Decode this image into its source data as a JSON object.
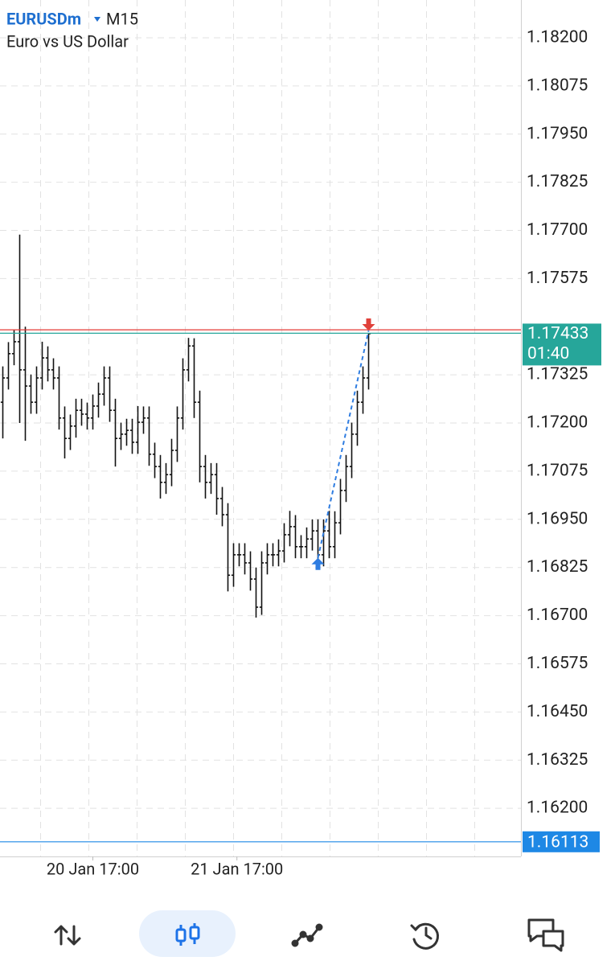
{
  "chart_data": {
    "type": "ohlc",
    "symbol": "EURUSDm",
    "timeframe": "M15",
    "title": "Euro vs US Dollar",
    "open": [
      1.17254,
      1.17317,
      1.1738,
      1.17411,
      1.17338,
      1.17296,
      1.17254,
      1.17317,
      1.17369,
      1.17338,
      1.17317,
      1.17213,
      1.1716,
      1.17192,
      1.17233,
      1.17223,
      1.17213,
      1.17244,
      1.17275,
      1.17317,
      1.17233,
      1.1716,
      1.17171,
      1.17181,
      1.1715,
      1.17202,
      1.17213,
      1.17119,
      1.17087,
      1.17046,
      1.17066,
      1.17129,
      1.17213,
      1.17338,
      1.174,
      1.17254,
      1.17087,
      1.17046,
      1.17066,
      1.17004,
      1.16962,
      1.16805,
      1.16858,
      1.16858,
      1.16837,
      1.16795,
      1.16722,
      1.16837,
      1.16858,
      1.16858,
      1.16868,
      1.1691,
      1.16931,
      1.16879,
      1.16879,
      1.16899,
      1.1692,
      1.16858,
      1.1692,
      1.16879,
      1.16941,
      1.17025,
      1.17087,
      1.17171,
      1.17254,
      1.17317
    ],
    "high": [
      1.17347,
      1.1741,
      1.17441,
      1.17689,
      1.1745,
      1.17326,
      1.17347,
      1.17411,
      1.17399,
      1.17368,
      1.17347,
      1.17243,
      1.17222,
      1.17263,
      1.17263,
      1.17253,
      1.17274,
      1.17305,
      1.17347,
      1.17347,
      1.17263,
      1.17201,
      1.17211,
      1.17211,
      1.17244,
      1.17243,
      1.17243,
      1.17149,
      1.17117,
      1.17096,
      1.17159,
      1.17243,
      1.17368,
      1.17421,
      1.1742,
      1.17284,
      1.17117,
      1.17096,
      1.17096,
      1.17034,
      1.16992,
      1.16888,
      1.16888,
      1.16888,
      1.16867,
      1.16825,
      1.16867,
      1.16888,
      1.16888,
      1.16898,
      1.1694,
      1.16972,
      1.16961,
      1.16909,
      1.16929,
      1.1695,
      1.1695,
      1.1695,
      1.16972,
      1.16971,
      1.17055,
      1.17117,
      1.17201,
      1.17284,
      1.17347,
      1.17433
    ],
    "low": [
      1.1716,
      1.17287,
      1.1735,
      1.172,
      1.17154,
      1.17224,
      1.17224,
      1.17287,
      1.17308,
      1.17287,
      1.17183,
      1.17108,
      1.1713,
      1.17162,
      1.17193,
      1.17183,
      1.17183,
      1.17214,
      1.17245,
      1.17203,
      1.17087,
      1.1713,
      1.17141,
      1.1712,
      1.1712,
      1.17172,
      1.17089,
      1.17057,
      1.17004,
      1.17016,
      1.17036,
      1.17099,
      1.17183,
      1.17308,
      1.17213,
      1.17046,
      1.17004,
      1.17016,
      1.16962,
      1.16932,
      1.16763,
      1.16775,
      1.16828,
      1.16807,
      1.16765,
      1.16695,
      1.16702,
      1.16807,
      1.16828,
      1.16828,
      1.16838,
      1.1688,
      1.16849,
      1.16849,
      1.16849,
      1.16869,
      1.16828,
      1.16828,
      1.16849,
      1.16849,
      1.16911,
      1.16995,
      1.17057,
      1.17141,
      1.17224,
      1.17287
    ],
    "close": [
      1.17317,
      1.1738,
      1.17411,
      1.17338,
      1.17296,
      1.17254,
      1.17317,
      1.17369,
      1.17338,
      1.17317,
      1.17213,
      1.1716,
      1.17192,
      1.17233,
      1.17223,
      1.17213,
      1.17244,
      1.17275,
      1.17317,
      1.17233,
      1.1716,
      1.17171,
      1.17181,
      1.1715,
      1.17202,
      1.17213,
      1.17119,
      1.17087,
      1.17046,
      1.17066,
      1.17129,
      1.17213,
      1.17338,
      1.174,
      1.17254,
      1.17087,
      1.17046,
      1.17066,
      1.17004,
      1.16962,
      1.16805,
      1.16858,
      1.16858,
      1.16837,
      1.16795,
      1.16722,
      1.16837,
      1.16858,
      1.16858,
      1.16868,
      1.1691,
      1.16931,
      1.16879,
      1.16879,
      1.16899,
      1.1692,
      1.16858,
      1.1692,
      1.16879,
      1.16941,
      1.17025,
      1.17087,
      1.17171,
      1.17254,
      1.17317,
      1.17432
    ],
    "bar_color": "#111111",
    "xlim": [
      -0.5,
      92.07
    ],
    "xticks": [
      {
        "value": 16,
        "label": "20 Jan 17:00"
      },
      {
        "value": 41.6,
        "label": "21 Jan 17:00"
      }
    ],
    "ylim": [
      1.16075,
      1.18298
    ],
    "yticks": [
      {
        "value": 1.182,
        "label": "1.18200"
      },
      1.18075,
      {
        "value": 1.1795,
        "label": "1.17950"
      },
      1.17825,
      {
        "value": 1.177,
        "label": "1.17700"
      },
      1.17575,
      1.17325,
      {
        "value": 1.172,
        "label": "1.17200"
      },
      1.17075,
      {
        "value": 1.1695,
        "label": "1.16950"
      },
      1.16825,
      {
        "value": 1.167,
        "label": "1.16700"
      },
      1.16575,
      {
        "value": 1.1645,
        "label": "1.16450"
      },
      1.16325,
      {
        "value": 1.162,
        "label": "1.16200"
      }
    ],
    "grid": true,
    "bid": 1.17433,
    "bid_color": "#26a69a",
    "countdown": "01:40",
    "ask": 1.17442,
    "ask_color": "#e53935",
    "price_line": 1.16113,
    "price_line_color": "#1e88e5",
    "trade": {
      "entry": {
        "x": 56,
        "price": 1.1685
      },
      "exit": {
        "x": 65,
        "price": 1.1744
      },
      "buy_color": "#2f7de1",
      "sell_color": "#e0413a"
    }
  }
}
